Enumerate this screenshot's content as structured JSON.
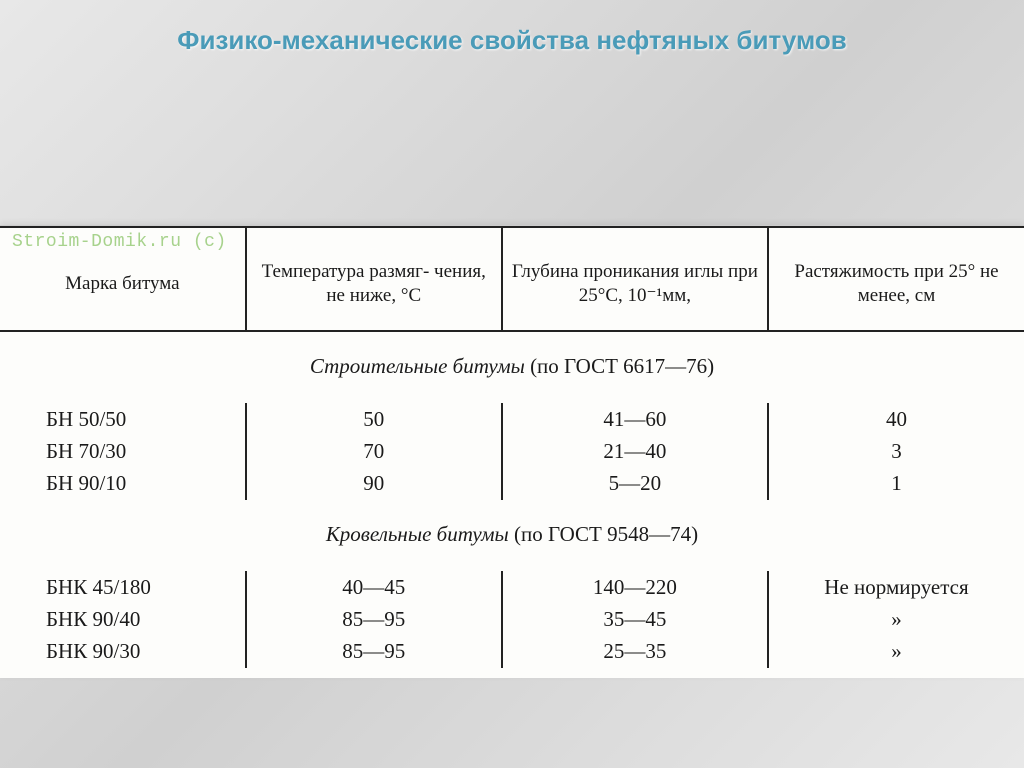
{
  "title": "Физико-механические свойства нефтяных битумов",
  "watermark": "Stroim-Domik.ru (c)",
  "headers": {
    "brand": "Марка битума",
    "temp": "Температура размяг-\nчения, не ниже, °С",
    "pen": "Глубина проникания\nиглы при 25°С, 10⁻¹мм,",
    "duct": "Растяжимость при 25°\nне менее, см"
  },
  "sections": [
    {
      "caption_italic": "Строительные битумы",
      "caption_plain": " (по ГОСТ 6617—76)",
      "rows": [
        {
          "brand": "БН 50/50",
          "temp": "50",
          "pen": "41—60",
          "duct": "40"
        },
        {
          "brand": "БН 70/30",
          "temp": "70",
          "pen": "21—40",
          "duct": "3"
        },
        {
          "brand": "БН 90/10",
          "temp": "90",
          "pen": "5—20",
          "duct": "1"
        }
      ]
    },
    {
      "caption_italic": "Кровельные битумы",
      "caption_plain": " (по ГОСТ 9548—74)",
      "rows": [
        {
          "brand": "БНК 45/180",
          "temp": "40—45",
          "pen": "140—220",
          "duct": "Не нормируется"
        },
        {
          "brand": "БНК 90/40",
          "temp": "85—95",
          "pen": "35—45",
          "duct": "»"
        },
        {
          "brand": "БНК 90/30",
          "temp": "85—95",
          "pen": "25—35",
          "duct": "»"
        }
      ]
    }
  ],
  "colors": {
    "title": "#4a9bb8",
    "rule": "#222222",
    "paper": "#fdfdfb",
    "watermark": "#a7d28c"
  }
}
